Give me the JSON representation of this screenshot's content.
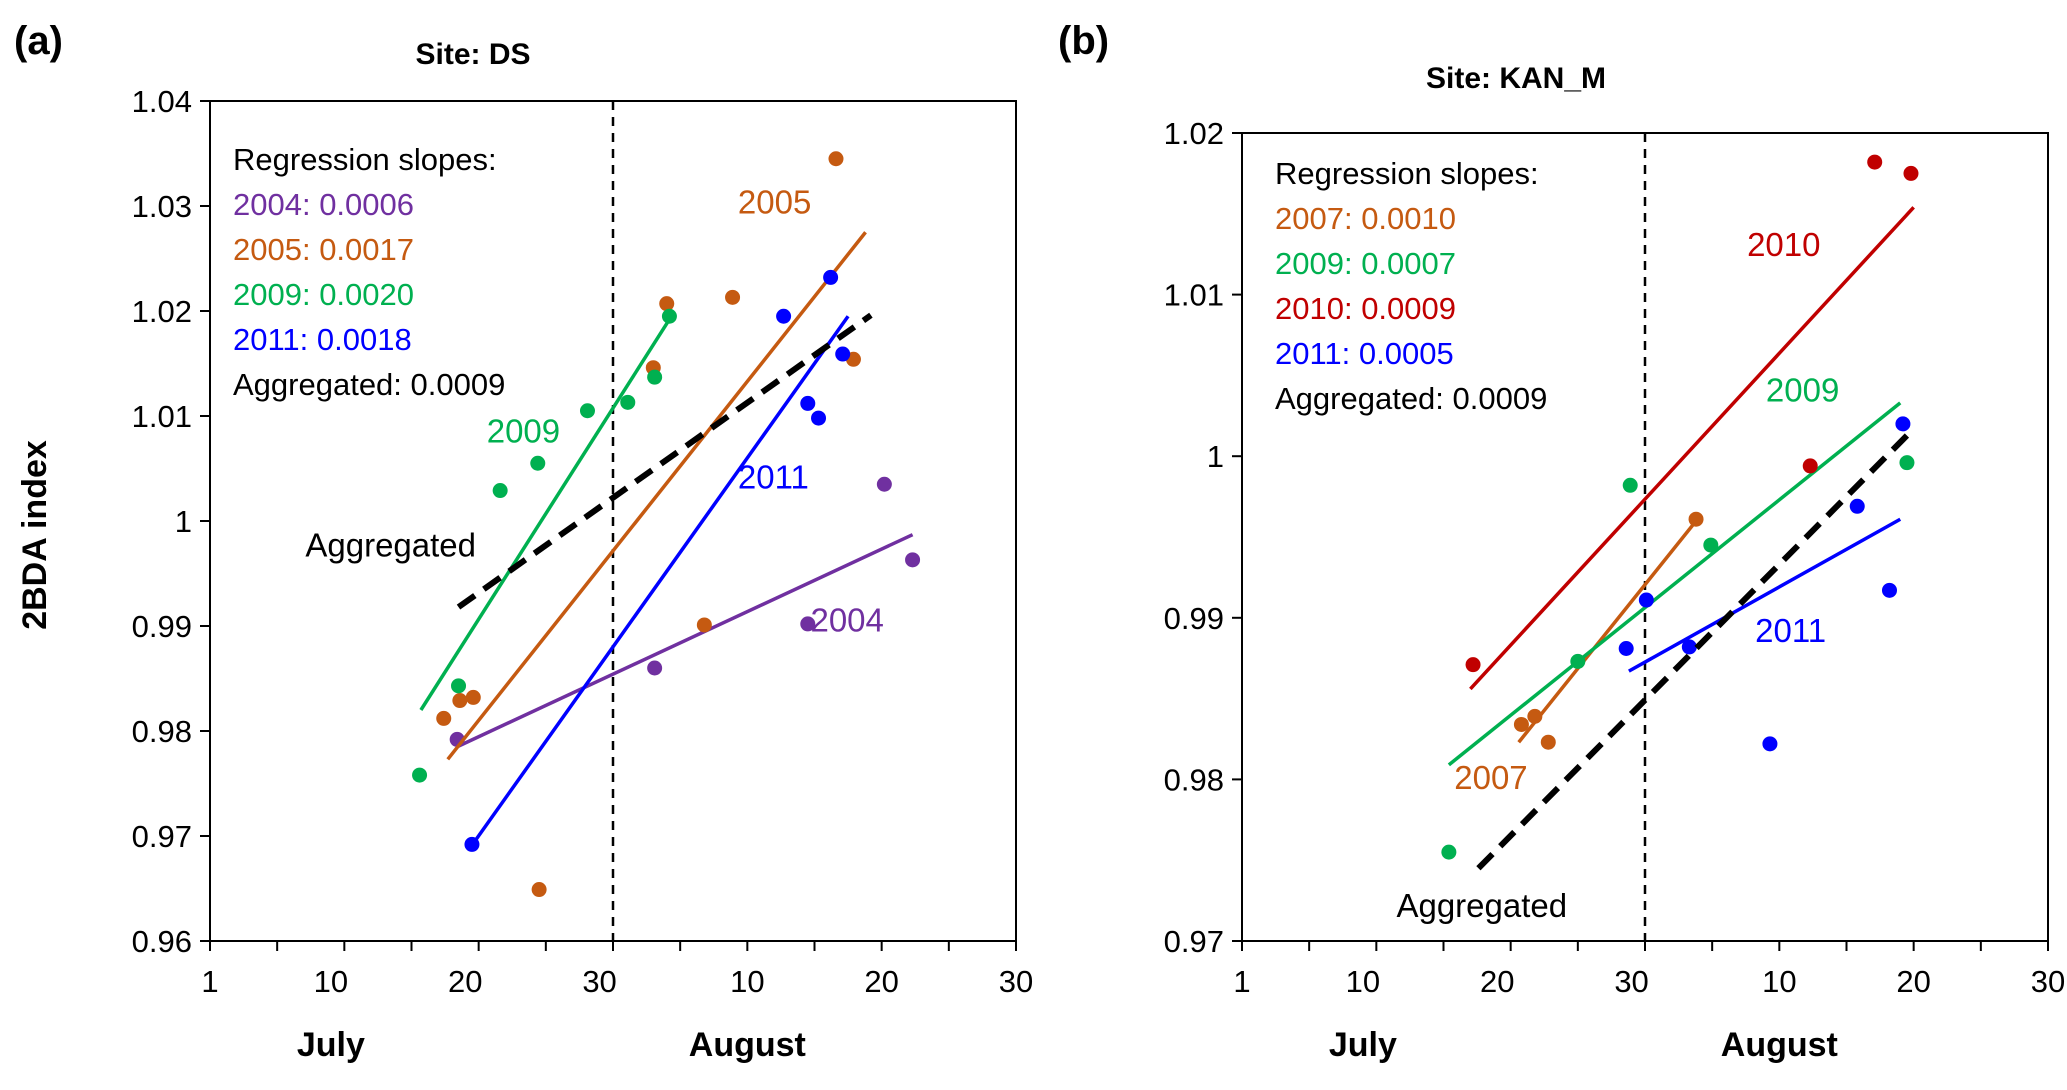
{
  "panel_labels": [
    "(a)",
    "(b)"
  ],
  "ylabel": "2BDA index",
  "chart_data": [
    {
      "type": "scatter",
      "title": "Site: DS",
      "xlabel": "",
      "ylabel": "2BDA index",
      "x_ticks": [
        "1",
        "10",
        "20",
        "30",
        "10",
        "20",
        "30"
      ],
      "x_tick_days": [
        0,
        9,
        19,
        29,
        40,
        50,
        60
      ],
      "month_labels": [
        {
          "text": "July",
          "day": 9
        },
        {
          "text": "August",
          "day": 40
        }
      ],
      "ylim": [
        0.96,
        1.04
      ],
      "y_ticks": [
        0.96,
        0.97,
        0.98,
        0.99,
        1.0,
        1.01,
        1.02,
        1.03,
        1.04
      ],
      "y_tick_labels": [
        "0.96",
        "0.97",
        "0.98",
        "0.99",
        "1",
        "1.01",
        "1.02",
        "1.03",
        "1.04"
      ],
      "month_boundary_day": 30,
      "legend": {
        "title": "Regression slopes:",
        "entries": [
          {
            "text": "2004: 0.0006",
            "color": "#7030a0"
          },
          {
            "text": "2005: 0.0017",
            "color": "#c55a11"
          },
          {
            "text": "2009: 0.0020",
            "color": "#00b050"
          },
          {
            "text": "2011: 0.0018",
            "color": "#0000ff"
          },
          {
            "text": "Aggregated: 0.0009",
            "color": "#000000"
          }
        ]
      },
      "series": [
        {
          "name": "2004",
          "color": "#7030a0",
          "points": [
            [
              18.4,
              0.9792
            ],
            [
              33.1,
              0.986
            ],
            [
              44.5,
              0.9902
            ],
            [
              50.2,
              1.0035
            ],
            [
              52.3,
              0.9963
            ]
          ],
          "line": [
            [
              18.4,
              0.9785
            ],
            [
              52.3,
              0.9987
            ]
          ],
          "label_pos": [
            44.7,
            0.9895
          ]
        },
        {
          "name": "2005",
          "color": "#c55a11",
          "points": [
            [
              17.4,
              0.9812
            ],
            [
              18.6,
              0.9829
            ],
            [
              19.6,
              0.9832
            ],
            [
              24.5,
              0.9649
            ],
            [
              33.0,
              1.0146
            ],
            [
              34.0,
              1.0207
            ],
            [
              36.8,
              0.9901
            ],
            [
              38.9,
              1.0213
            ],
            [
              46.6,
              1.0345
            ],
            [
              47.9,
              1.0154
            ]
          ],
          "line": [
            [
              17.7,
              0.9773
            ],
            [
              48.8,
              1.0275
            ]
          ],
          "label_pos": [
            39.3,
            1.0293
          ]
        },
        {
          "name": "2009",
          "color": "#00b050",
          "points": [
            [
              15.6,
              0.9758
            ],
            [
              18.5,
              0.9843
            ],
            [
              21.6,
              1.0029
            ],
            [
              24.4,
              1.0055
            ],
            [
              28.1,
              1.0105
            ],
            [
              31.1,
              1.0113
            ],
            [
              33.1,
              1.0137
            ],
            [
              34.2,
              1.0195
            ]
          ],
          "line": [
            [
              15.7,
              0.982
            ],
            [
              34.5,
              1.0198
            ]
          ],
          "label_pos": [
            20.6,
            1.0075
          ]
        },
        {
          "name": "2011",
          "color": "#0000ff",
          "points": [
            [
              19.5,
              0.9692
            ],
            [
              42.7,
              1.0195
            ],
            [
              44.5,
              1.0112
            ],
            [
              45.3,
              1.0098
            ],
            [
              46.2,
              1.0232
            ],
            [
              47.1,
              1.0159
            ]
          ],
          "line": [
            [
              19.6,
              0.9693
            ],
            [
              47.5,
              1.0195
            ]
          ],
          "label_pos": [
            39.3,
            1.0031
          ]
        },
        {
          "name": "Aggregated",
          "color": "#000000",
          "dashed": true,
          "points": [],
          "line": [
            [
              18.5,
              0.9918
            ],
            [
              49.2,
              1.0196
            ]
          ],
          "label_pos": [
            7.1,
            0.9966
          ]
        }
      ]
    },
    {
      "type": "scatter",
      "title": "Site: KAN_M",
      "xlabel": "",
      "ylabel": "2BDA index",
      "x_ticks": [
        "1",
        "10",
        "20",
        "30",
        "10",
        "20",
        "30"
      ],
      "x_tick_days": [
        0,
        9,
        19,
        29,
        40,
        50,
        60
      ],
      "month_labels": [
        {
          "text": "July",
          "day": 9
        },
        {
          "text": "August",
          "day": 40
        }
      ],
      "ylim": [
        0.97,
        1.02
      ],
      "y_ticks": [
        0.97,
        0.98,
        0.99,
        1.0,
        1.01,
        1.02
      ],
      "y_tick_labels": [
        "0.97",
        "0.98",
        "0.99",
        "1",
        "1.01",
        "1.02"
      ],
      "month_boundary_day": 30,
      "legend": {
        "title": "Regression slopes:",
        "entries": [
          {
            "text": "2007: 0.0010",
            "color": "#c55a11"
          },
          {
            "text": "2009: 0.0007",
            "color": "#00b050"
          },
          {
            "text": "2010: 0.0009",
            "color": "#c00000"
          },
          {
            "text": "2011: 0.0005",
            "color": "#0000ff"
          },
          {
            "text": "Aggregated: 0.0009",
            "color": "#000000"
          }
        ]
      },
      "series": [
        {
          "name": "2007",
          "color": "#c55a11",
          "points": [
            [
              20.8,
              0.9834
            ],
            [
              21.8,
              0.9839
            ],
            [
              22.8,
              0.9823
            ],
            [
              33.8,
              0.9961
            ]
          ],
          "line": [
            [
              20.6,
              0.9823
            ],
            [
              34.0,
              0.9962
            ]
          ],
          "label_pos": [
            15.8,
            0.9794
          ]
        },
        {
          "name": "2009",
          "color": "#00b050",
          "points": [
            [
              15.4,
              0.9755
            ],
            [
              25.0,
              0.9873
            ],
            [
              28.9,
              0.9982
            ],
            [
              34.9,
              0.9945
            ],
            [
              49.5,
              0.9996
            ]
          ],
          "line": [
            [
              15.4,
              0.9809
            ],
            [
              49.0,
              1.0033
            ]
          ],
          "label_pos": [
            39.0,
            1.0034
          ]
        },
        {
          "name": "2010",
          "color": "#c00000",
          "points": [
            [
              17.2,
              0.9871
            ],
            [
              42.3,
              0.9994
            ],
            [
              47.1,
              1.0182
            ],
            [
              49.8,
              1.0175
            ]
          ],
          "line": [
            [
              17.0,
              0.9856
            ],
            [
              50.0,
              1.0154
            ]
          ],
          "label_pos": [
            37.6,
            1.0124
          ]
        },
        {
          "name": "2011",
          "color": "#0000ff",
          "points": [
            [
              28.6,
              0.9881
            ],
            [
              30.1,
              0.9911
            ],
            [
              33.3,
              0.9882
            ],
            [
              39.3,
              0.9822
            ],
            [
              45.8,
              0.9969
            ],
            [
              48.2,
              0.9917
            ],
            [
              49.2,
              1.002
            ]
          ],
          "line": [
            [
              28.8,
              0.9867
            ],
            [
              49.0,
              0.9961
            ]
          ],
          "label_pos": [
            38.2,
            0.9885
          ]
        },
        {
          "name": "Aggregated",
          "color": "#000000",
          "dashed": true,
          "points": [],
          "line": [
            [
              17.6,
              0.9745
            ],
            [
              50.0,
              1.0017
            ]
          ],
          "label_pos": [
            11.5,
            0.9715
          ]
        }
      ]
    }
  ]
}
